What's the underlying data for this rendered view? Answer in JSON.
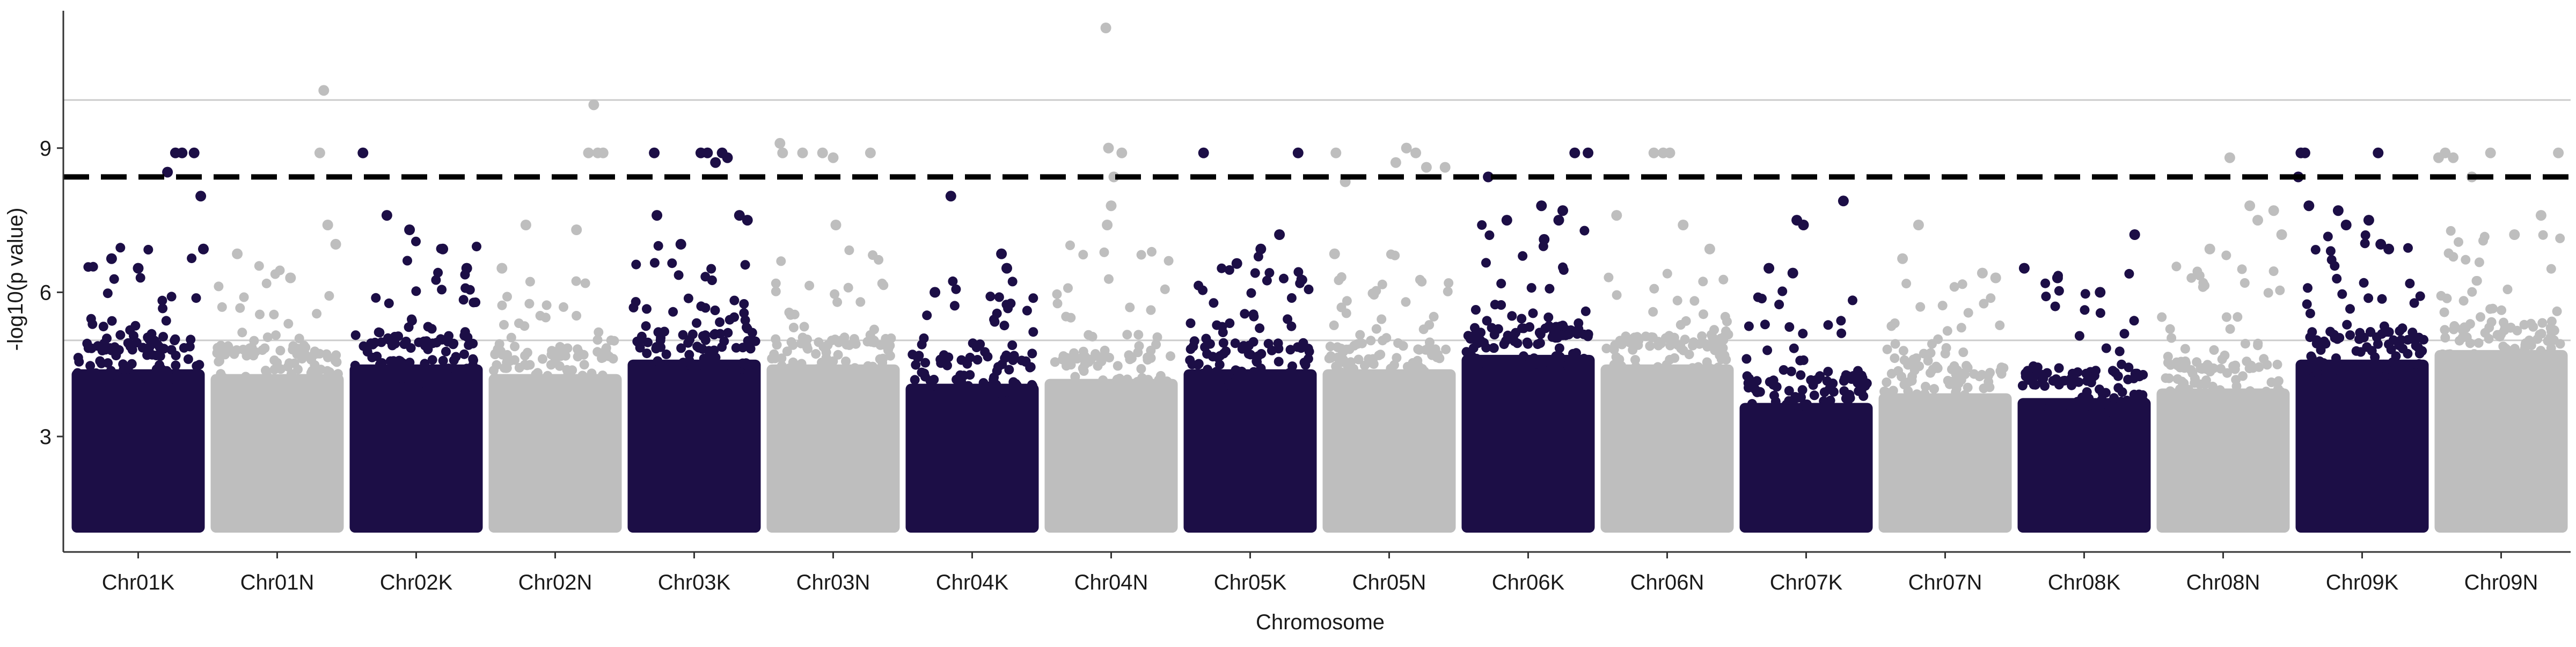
{
  "chart_data": {
    "type": "scatter",
    "subtype": "manhattan",
    "title": "",
    "xlabel": "Chromosome",
    "ylabel": "-log10(p value)",
    "ylim": [
      1.0,
      11.5
    ],
    "yticks": [
      3,
      6,
      9
    ],
    "grid": "horizontal reference lines only",
    "colors": {
      "odd": "#1C0E46",
      "even": "#BEBEBE",
      "threshold": "#000000",
      "reference": "#CCCCCC"
    },
    "thresholds": [
      {
        "y": 8.4,
        "style": "dashed"
      },
      {
        "y": 10.0,
        "style": "solid"
      },
      {
        "y": 5.0,
        "style": "solid"
      }
    ],
    "categories": [
      "Chr01K",
      "Chr01N",
      "Chr02K",
      "Chr02N",
      "Chr03K",
      "Chr03N",
      "Chr04K",
      "Chr04N",
      "Chr05K",
      "Chr05N",
      "Chr06K",
      "Chr06N",
      "Chr07K",
      "Chr07N",
      "Chr08K",
      "Chr08N",
      "Chr09K",
      "Chr09N"
    ],
    "series": [
      {
        "category": "Chr01K",
        "color": "#1C0E46",
        "dense_max": 4.6,
        "sparse_max": 6.8,
        "points": [
          {
            "pos": 0.72,
            "y": 8.5
          },
          {
            "pos": 0.78,
            "y": 8.9
          },
          {
            "pos": 0.83,
            "y": 8.9
          },
          {
            "pos": 0.92,
            "y": 8.9
          },
          {
            "pos": 0.97,
            "y": 8.0
          },
          {
            "pos": 0.99,
            "y": 6.9
          },
          {
            "pos": 0.3,
            "y": 6.7
          },
          {
            "pos": 0.5,
            "y": 6.5
          }
        ]
      },
      {
        "category": "Chr01N",
        "color": "#BEBEBE",
        "dense_max": 4.5,
        "sparse_max": 6.5,
        "points": [
          {
            "pos": 0.85,
            "y": 10.2
          },
          {
            "pos": 0.82,
            "y": 8.9
          },
          {
            "pos": 0.88,
            "y": 7.4
          },
          {
            "pos": 0.94,
            "y": 7.0
          },
          {
            "pos": 0.2,
            "y": 6.8
          },
          {
            "pos": 0.6,
            "y": 6.3
          }
        ]
      },
      {
        "category": "Chr02K",
        "color": "#1C0E46",
        "dense_max": 4.7,
        "sparse_max": 6.9,
        "points": [
          {
            "pos": 0.1,
            "y": 8.9
          },
          {
            "pos": 0.28,
            "y": 7.6
          },
          {
            "pos": 0.45,
            "y": 7.3
          },
          {
            "pos": 0.7,
            "y": 6.9
          },
          {
            "pos": 0.88,
            "y": 6.5
          }
        ]
      },
      {
        "category": "Chr02N",
        "color": "#BEBEBE",
        "dense_max": 4.5,
        "sparse_max": 6.4,
        "points": [
          {
            "pos": 0.79,
            "y": 9.9
          },
          {
            "pos": 0.75,
            "y": 8.9
          },
          {
            "pos": 0.82,
            "y": 8.9
          },
          {
            "pos": 0.86,
            "y": 8.9
          },
          {
            "pos": 0.28,
            "y": 7.4
          },
          {
            "pos": 0.66,
            "y": 7.3
          },
          {
            "pos": 0.1,
            "y": 6.5
          }
        ]
      },
      {
        "category": "Chr03K",
        "color": "#1C0E46",
        "dense_max": 4.8,
        "sparse_max": 7.0,
        "points": [
          {
            "pos": 0.2,
            "y": 8.9
          },
          {
            "pos": 0.55,
            "y": 8.9
          },
          {
            "pos": 0.6,
            "y": 8.9
          },
          {
            "pos": 0.66,
            "y": 8.7
          },
          {
            "pos": 0.71,
            "y": 8.9
          },
          {
            "pos": 0.75,
            "y": 8.8
          },
          {
            "pos": 0.22,
            "y": 7.6
          },
          {
            "pos": 0.84,
            "y": 7.6
          },
          {
            "pos": 0.9,
            "y": 7.5
          },
          {
            "pos": 0.4,
            "y": 7.0
          }
        ]
      },
      {
        "category": "Chr03N",
        "color": "#BEBEBE",
        "dense_max": 4.7,
        "sparse_max": 6.8,
        "points": [
          {
            "pos": 0.1,
            "y": 9.1
          },
          {
            "pos": 0.12,
            "y": 8.9
          },
          {
            "pos": 0.27,
            "y": 8.9
          },
          {
            "pos": 0.42,
            "y": 8.9
          },
          {
            "pos": 0.5,
            "y": 8.8
          },
          {
            "pos": 0.78,
            "y": 8.9
          },
          {
            "pos": 0.52,
            "y": 7.4
          }
        ]
      },
      {
        "category": "Chr04K",
        "color": "#1C0E46",
        "dense_max": 4.3,
        "sparse_max": 6.4,
        "points": [
          {
            "pos": 0.34,
            "y": 8.0
          },
          {
            "pos": 0.72,
            "y": 6.8
          },
          {
            "pos": 0.76,
            "y": 6.5
          },
          {
            "pos": 0.22,
            "y": 6.0
          }
        ]
      },
      {
        "category": "Chr04N",
        "color": "#BEBEBE",
        "dense_max": 4.4,
        "sparse_max": 6.8,
        "points": [
          {
            "pos": 0.46,
            "y": 11.5
          },
          {
            "pos": 0.48,
            "y": 9.0
          },
          {
            "pos": 0.52,
            "y": 8.4
          },
          {
            "pos": 0.58,
            "y": 8.9
          },
          {
            "pos": 0.5,
            "y": 7.8
          },
          {
            "pos": 0.47,
            "y": 7.4
          }
        ]
      },
      {
        "category": "Chr05K",
        "color": "#1C0E46",
        "dense_max": 4.6,
        "sparse_max": 6.8,
        "points": [
          {
            "pos": 0.15,
            "y": 8.9
          },
          {
            "pos": 0.86,
            "y": 8.9
          },
          {
            "pos": 0.72,
            "y": 7.2
          },
          {
            "pos": 0.58,
            "y": 6.9
          },
          {
            "pos": 0.4,
            "y": 6.6
          }
        ]
      },
      {
        "category": "Chr05N",
        "color": "#BEBEBE",
        "dense_max": 4.6,
        "sparse_max": 6.6,
        "points": [
          {
            "pos": 0.1,
            "y": 8.9
          },
          {
            "pos": 0.17,
            "y": 8.3
          },
          {
            "pos": 0.55,
            "y": 8.7
          },
          {
            "pos": 0.63,
            "y": 9.0
          },
          {
            "pos": 0.7,
            "y": 8.9
          },
          {
            "pos": 0.78,
            "y": 8.6
          },
          {
            "pos": 0.92,
            "y": 8.6
          },
          {
            "pos": 0.09,
            "y": 6.8
          }
        ]
      },
      {
        "category": "Chr06K",
        "color": "#1C0E46",
        "dense_max": 4.9,
        "sparse_max": 7.3,
        "points": [
          {
            "pos": 0.2,
            "y": 8.4
          },
          {
            "pos": 0.34,
            "y": 7.5
          },
          {
            "pos": 0.6,
            "y": 7.8
          },
          {
            "pos": 0.73,
            "y": 7.5
          },
          {
            "pos": 0.76,
            "y": 7.7
          },
          {
            "pos": 0.85,
            "y": 8.9
          },
          {
            "pos": 0.95,
            "y": 8.9
          },
          {
            "pos": 0.62,
            "y": 7.1
          }
        ]
      },
      {
        "category": "Chr06N",
        "color": "#BEBEBE",
        "dense_max": 4.7,
        "sparse_max": 6.6,
        "points": [
          {
            "pos": 0.4,
            "y": 8.9
          },
          {
            "pos": 0.47,
            "y": 8.9
          },
          {
            "pos": 0.52,
            "y": 8.9
          },
          {
            "pos": 0.12,
            "y": 7.6
          },
          {
            "pos": 0.62,
            "y": 7.4
          },
          {
            "pos": 0.82,
            "y": 6.9
          }
        ]
      },
      {
        "category": "Chr07K",
        "color": "#1C0E46",
        "dense_max": 3.9,
        "sparse_max": 6.0,
        "points": [
          {
            "pos": 0.43,
            "y": 7.5
          },
          {
            "pos": 0.48,
            "y": 7.4
          },
          {
            "pos": 0.78,
            "y": 7.9
          },
          {
            "pos": 0.22,
            "y": 6.5
          },
          {
            "pos": 0.4,
            "y": 6.4
          }
        ]
      },
      {
        "category": "Chr07N",
        "color": "#BEBEBE",
        "dense_max": 4.1,
        "sparse_max": 6.0,
        "points": [
          {
            "pos": 0.3,
            "y": 7.4
          },
          {
            "pos": 0.18,
            "y": 6.7
          },
          {
            "pos": 0.78,
            "y": 6.4
          },
          {
            "pos": 0.88,
            "y": 6.3
          }
        ]
      },
      {
        "category": "Chr08K",
        "color": "#1C0E46",
        "dense_max": 4.0,
        "sparse_max": 6.2,
        "points": [
          {
            "pos": 0.88,
            "y": 7.2
          },
          {
            "pos": 0.05,
            "y": 6.5
          },
          {
            "pos": 0.3,
            "y": 6.3
          },
          {
            "pos": 0.62,
            "y": 6.0
          }
        ]
      },
      {
        "category": "Chr08N",
        "color": "#BEBEBE",
        "dense_max": 4.2,
        "sparse_max": 6.6,
        "points": [
          {
            "pos": 0.55,
            "y": 8.8
          },
          {
            "pos": 0.7,
            "y": 7.8
          },
          {
            "pos": 0.76,
            "y": 7.5
          },
          {
            "pos": 0.88,
            "y": 7.7
          },
          {
            "pos": 0.94,
            "y": 7.2
          },
          {
            "pos": 0.4,
            "y": 6.9
          }
        ]
      },
      {
        "category": "Chr09K",
        "color": "#1C0E46",
        "dense_max": 4.8,
        "sparse_max": 7.0,
        "points": [
          {
            "pos": 0.04,
            "y": 8.9
          },
          {
            "pos": 0.07,
            "y": 8.9
          },
          {
            "pos": 0.02,
            "y": 8.4
          },
          {
            "pos": 0.1,
            "y": 7.8
          },
          {
            "pos": 0.32,
            "y": 7.7
          },
          {
            "pos": 0.38,
            "y": 7.4
          },
          {
            "pos": 0.55,
            "y": 7.5
          },
          {
            "pos": 0.62,
            "y": 8.9
          },
          {
            "pos": 0.64,
            "y": 7.0
          },
          {
            "pos": 0.7,
            "y": 6.9
          }
        ]
      },
      {
        "category": "Chr09N",
        "color": "#BEBEBE",
        "dense_max": 5.0,
        "sparse_max": 7.2,
        "points": [
          {
            "pos": 0.03,
            "y": 8.8
          },
          {
            "pos": 0.08,
            "y": 8.9
          },
          {
            "pos": 0.14,
            "y": 8.8
          },
          {
            "pos": 0.28,
            "y": 8.4
          },
          {
            "pos": 0.42,
            "y": 8.9
          },
          {
            "pos": 0.93,
            "y": 8.9
          },
          {
            "pos": 0.8,
            "y": 7.6
          },
          {
            "pos": 0.6,
            "y": 7.2
          }
        ]
      }
    ]
  }
}
